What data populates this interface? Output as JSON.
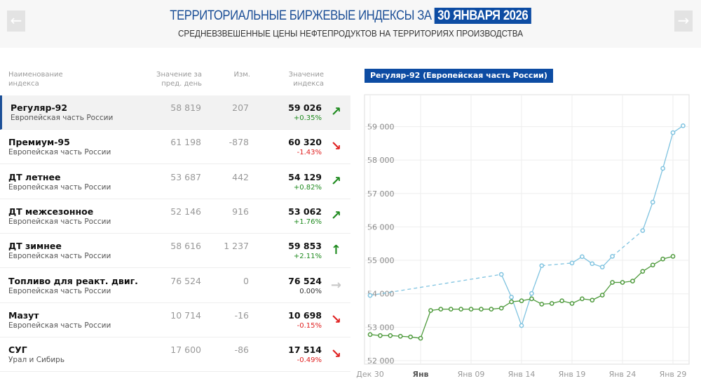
{
  "header": {
    "title": "ТЕРРИТОРИАЛЬНЫЕ БИРЖЕВЫЕ ИНДЕКСЫ ЗА",
    "date": "30 ЯНВАРЯ 2026",
    "subtitle": "СРЕДНЕВЗВЕШЕННЫЕ ЦЕНЫ НЕФТЕПРОДУКТОВ НА ТЕРРИТОРИЯХ ПРОИЗВОДСТВА",
    "prev_icon": "arrow-left-icon",
    "next_icon": "arrow-right-icon",
    "prev": "←",
    "next": "→"
  },
  "table": {
    "headers": {
      "name1": "Наименование",
      "name2": "индекса",
      "prev1": "Значение за",
      "prev2": "пред. день",
      "change": "Изм.",
      "val1": "Значение",
      "val2": "индекса"
    },
    "colors": {
      "up": "#1e8a1e",
      "down": "#e02020",
      "flat": "#c8c8c8"
    },
    "rows": [
      {
        "name": "Регуляр-92",
        "region": "Европейская часть России",
        "prev": "58 819",
        "change": "207",
        "value": "59 026",
        "pct": "+0.35%",
        "arrow": "↗",
        "trend": "up"
      },
      {
        "name": "Премиум-95",
        "region": "Европейская часть России",
        "prev": "61 198",
        "change": "-878",
        "value": "60 320",
        "pct": "-1.43%",
        "arrow": "↘",
        "trend": "down"
      },
      {
        "name": "ДТ летнее",
        "region": "Европейская часть России",
        "prev": "53 687",
        "change": "442",
        "value": "54 129",
        "pct": "+0.82%",
        "arrow": "↗",
        "trend": "up"
      },
      {
        "name": "ДТ межсезонное",
        "region": "Европейская часть России",
        "prev": "52 146",
        "change": "916",
        "value": "53 062",
        "pct": "+1.76%",
        "arrow": "↗",
        "trend": "up"
      },
      {
        "name": "ДТ зимнее",
        "region": "Европейская часть России",
        "prev": "58 616",
        "change": "1 237",
        "value": "59 853",
        "pct": "+2.11%",
        "arrow": "↑",
        "trend": "up"
      },
      {
        "name": "Топливо для реакт. двиг.",
        "region": "Европейская часть России",
        "prev": "76 524",
        "change": "0",
        "value": "76 524",
        "pct": "0.00%",
        "arrow": "→",
        "trend": "flat"
      },
      {
        "name": "Мазут",
        "region": "Европейская часть России",
        "prev": "10 714",
        "change": "-16",
        "value": "10 698",
        "pct": "-0.15%",
        "arrow": "↘",
        "trend": "down"
      },
      {
        "name": "СУГ",
        "region": "Урал и Сибирь",
        "prev": "17 600",
        "change": "-86",
        "value": "17 514",
        "pct": "-0.49%",
        "arrow": "↘",
        "trend": "down"
      }
    ]
  },
  "chart_data": {
    "type": "line",
    "title": "Регуляр-92 (Европейская часть России)",
    "x": [
      "2025-12-30",
      "2025-12-31",
      "2026-01-01",
      "2026-01-02",
      "2026-01-03",
      "2026-01-04",
      "2026-01-05",
      "2026-01-06",
      "2026-01-07",
      "2026-01-08",
      "2026-01-09",
      "2026-01-10",
      "2026-01-11",
      "2026-01-12",
      "2026-01-13",
      "2026-01-14",
      "2026-01-15",
      "2026-01-16",
      "2026-01-17",
      "2026-01-18",
      "2026-01-19",
      "2026-01-20",
      "2026-01-21",
      "2026-01-22",
      "2026-01-23",
      "2026-01-24",
      "2026-01-25",
      "2026-01-26",
      "2026-01-27",
      "2026-01-28",
      "2026-01-29",
      "2026-01-30"
    ],
    "series": [
      {
        "color": "#7fc3e0",
        "values": [
          53950,
          null,
          null,
          null,
          null,
          null,
          null,
          null,
          null,
          null,
          null,
          null,
          null,
          54580,
          53900,
          53050,
          54010,
          54840,
          null,
          null,
          54920,
          55110,
          54900,
          54800,
          55120,
          null,
          null,
          55890,
          56740,
          57750,
          58819,
          59026
        ]
      },
      {
        "color": "#4e9a3c",
        "values": [
          52780,
          52750,
          52750,
          52730,
          52710,
          52670,
          53500,
          53540,
          53540,
          53540,
          53540,
          53540,
          53540,
          53570,
          53760,
          53790,
          53850,
          53690,
          53710,
          53790,
          53710,
          53850,
          53810,
          53960,
          54340,
          54340,
          54380,
          54670,
          54860,
          55040,
          55120,
          null
        ]
      }
    ],
    "yticks": [
      "52 000",
      "53 000",
      "54 000",
      "55 000",
      "56 000",
      "57 000",
      "58 000",
      "59 000"
    ],
    "ylim": [
      52000,
      59800
    ],
    "xticks": [
      {
        "date": "2025-12-30",
        "label": "Дек 30"
      },
      {
        "date": "2026-01-04",
        "label": "Янв"
      },
      {
        "date": "2026-01-09",
        "label": "Янв 09"
      },
      {
        "date": "2026-01-14",
        "label": "Янв 14"
      },
      {
        "date": "2026-01-19",
        "label": "Янв 19"
      },
      {
        "date": "2026-01-24",
        "label": "Янв 24"
      },
      {
        "date": "2026-01-29",
        "label": "Янв 29"
      }
    ],
    "grid": true
  }
}
